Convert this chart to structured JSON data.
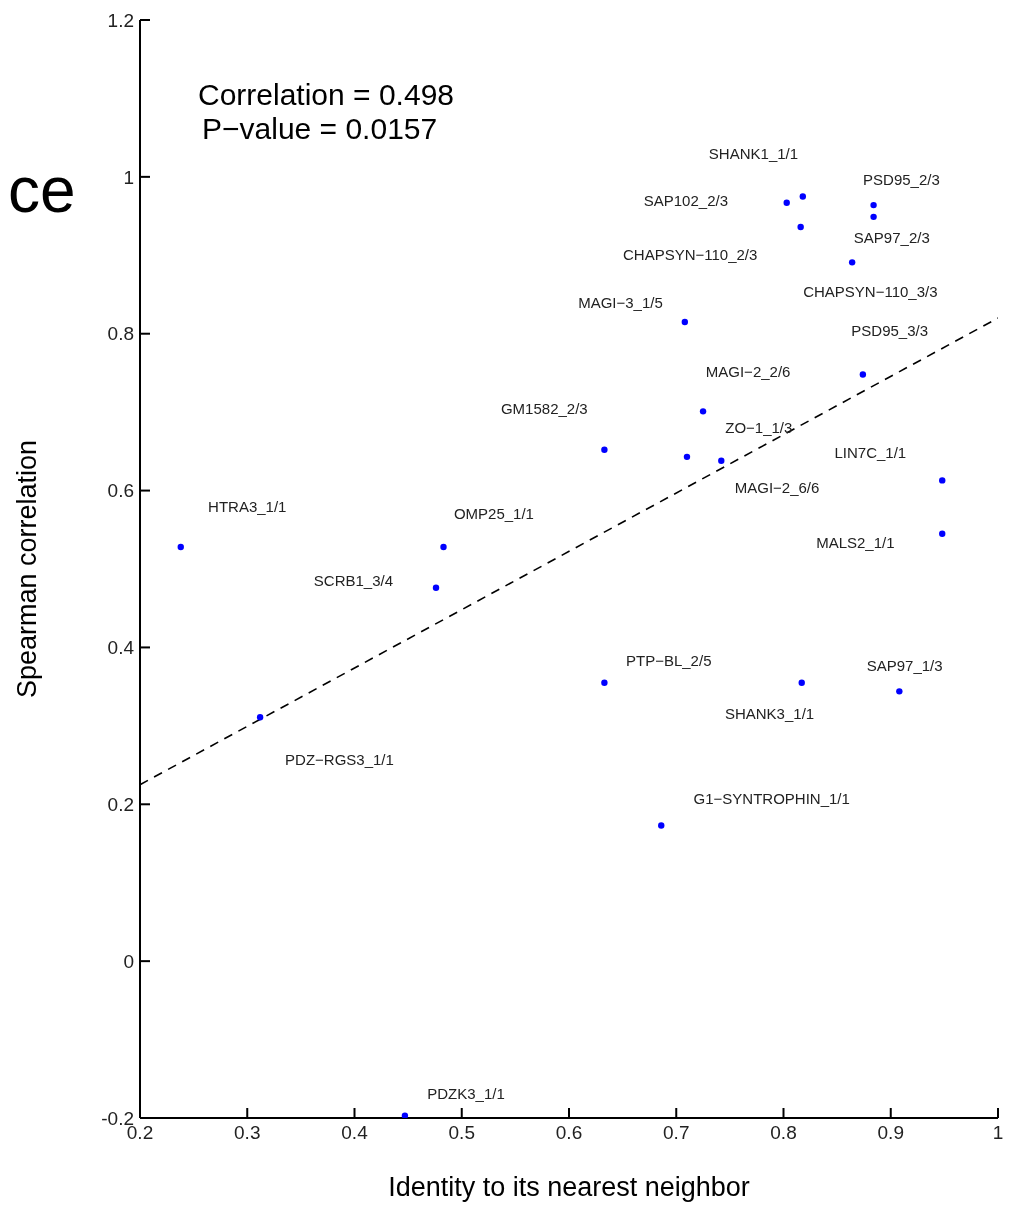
{
  "chart_data": {
    "type": "scatter",
    "xlabel": "Identity to its nearest neighbor",
    "ylabel": "Spearman correlation",
    "xlim": [
      0.2,
      1
    ],
    "xticks": [
      0.2,
      0.3,
      0.4,
      0.5,
      0.6,
      0.7,
      0.8,
      0.9,
      1
    ],
    "ylim": [
      -0.2,
      1.2
    ],
    "yticks": [
      -0.2,
      0,
      0.2,
      0.4,
      0.6,
      0.8,
      1,
      1.2
    ],
    "grid": false,
    "legend": false,
    "marker": "circle",
    "series": [
      {
        "color": "#0000ff",
        "x": [
          0.818,
          0.803,
          0.816,
          0.884,
          0.884,
          0.864,
          0.708,
          0.874,
          0.633,
          0.725,
          0.71,
          0.742,
          0.948,
          0.948,
          0.238,
          0.483,
          0.476,
          0.312,
          0.633,
          0.817,
          0.908,
          0.686,
          0.447
        ],
        "values": [
          0.975,
          0.967,
          0.936,
          0.964,
          0.949,
          0.891,
          0.815,
          0.748,
          0.652,
          0.701,
          0.643,
          0.638,
          0.613,
          0.545,
          0.528,
          0.528,
          0.476,
          0.311,
          0.355,
          0.355,
          0.344,
          0.173,
          -0.197
        ]
      },
      {
        "type": "line",
        "color": "#000000",
        "marker": "none",
        "line_style": "dashed",
        "x": [
          0.2,
          1
        ],
        "values": [
          0.225,
          0.82
        ]
      }
    ],
    "annotations": [
      "ce",
      "Correlation = 0.498",
      "P−value = 0.0157",
      "SHANK1_1/1",
      "SAP102_2/3",
      "PSD95_2/3",
      "SAP97_2/3",
      "CHAPSYN−110_2/3",
      "CHAPSYN−110_3/3",
      "MAGI−3_1/5",
      "PSD95_3/3",
      "MAGI−2_2/6",
      "GM1582_2/3",
      "ZO−1_1/3",
      "LIN7C_1/1",
      "MAGI−2_6/6",
      "HTRA3_1/1",
      "OMP25_1/1",
      "MALS2_1/1",
      "SCRB1_3/4",
      "PTP−BL_2/5",
      "SAP97_1/3",
      "SHANK3_1/1",
      "PDZ−RGS3_1/1",
      "G1−SYNTROPHIN_1/1",
      "PDZK3_1/1"
    ]
  }
}
